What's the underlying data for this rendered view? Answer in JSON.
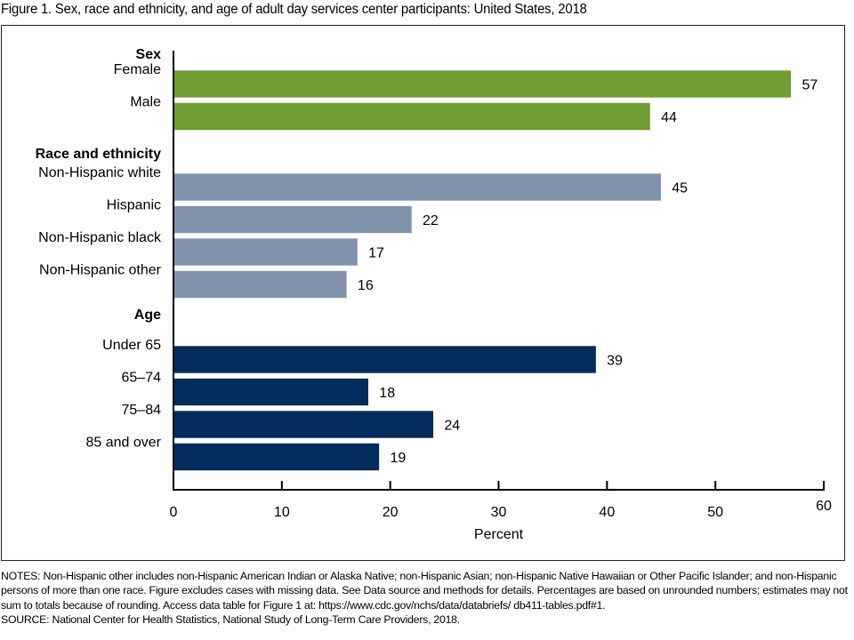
{
  "figure_title": "Figure 1. Sex, race and ethnicity, and age of adult day services center participants: United States, 2018",
  "chart_data": {
    "type": "bar",
    "orientation": "horizontal",
    "title": "Figure 1. Sex, race and ethnicity, and age of adult day services center participants: United States, 2018",
    "xlabel": "Percent",
    "ylabel": "",
    "xlim": [
      0,
      60
    ],
    "xticks": [
      0,
      10,
      20,
      30,
      40,
      50,
      60
    ],
    "grid": false,
    "groups": [
      {
        "name": "Sex",
        "color": "#6f9c33",
        "categories": [
          "Female",
          "Male"
        ],
        "values": [
          57,
          44
        ]
      },
      {
        "name": "Race and ethnicity",
        "color": "#8193ac",
        "categories": [
          "Non-Hispanic white",
          "Hispanic",
          "Non-Hispanic black",
          "Non-Hispanic other"
        ],
        "values": [
          45,
          22,
          17,
          16
        ]
      },
      {
        "name": "Age",
        "color": "#022c5c",
        "categories": [
          "Under 65",
          "65–74",
          "75–84",
          "85 and over"
        ],
        "values": [
          39,
          18,
          24,
          19
        ]
      }
    ]
  },
  "notes": "NOTES: Non-Hispanic other includes non-Hispanic American Indian or Alaska Native; non-Hispanic Asian; non-Hispanic Native Hawaiian or Other Pacific Islander; and non-Hispanic persons of more than one race. Figure excludes cases with missing data. See Data source and methods for details. Percentages are based on unrounded numbers; estimates may not sum to totals because of rounding. Access data table for Figure 1 at: https://www.cdc.gov/nchs/data/databriefs/ db411-tables.pdf#1.",
  "source": "SOURCE: National Center for Health Statistics, National Study of Long-Term Care Providers, 2018."
}
